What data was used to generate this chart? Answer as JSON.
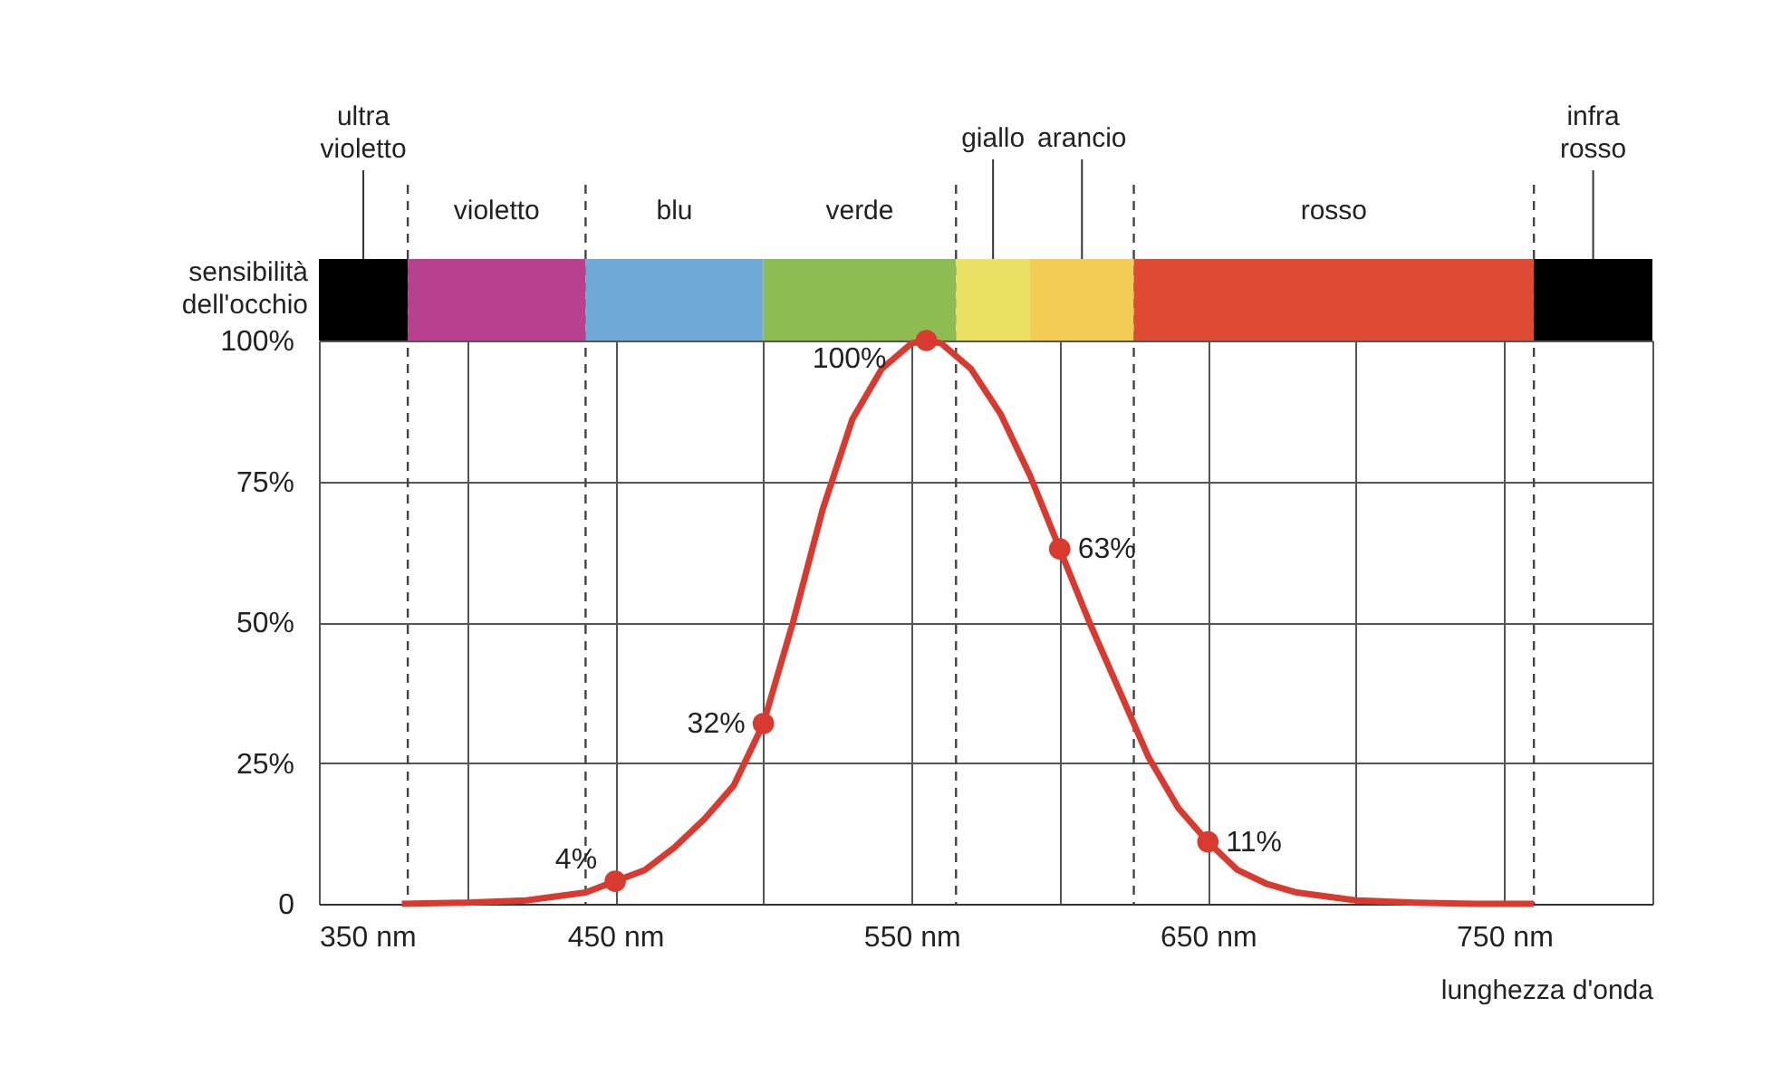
{
  "chart_data": {
    "type": "line",
    "xlabel": "lunghezza d'onda",
    "ylabel": "sensibilità dell'occhio",
    "xlim": [
      350,
      800
    ],
    "ylim": [
      0,
      100
    ],
    "xticks": [
      {
        "value": 350,
        "label": "350 nm"
      },
      {
        "value": 400,
        "label": null
      },
      {
        "value": 450,
        "label": "450 nm"
      },
      {
        "value": 500,
        "label": null
      },
      {
        "value": 550,
        "label": "550 nm"
      },
      {
        "value": 600,
        "label": null
      },
      {
        "value": 650,
        "label": "650 nm"
      },
      {
        "value": 700,
        "label": null
      },
      {
        "value": 750,
        "label": "750 nm"
      },
      {
        "value": 800,
        "label": null
      }
    ],
    "yticks": [
      0,
      {
        "value": 25,
        "label": "25%"
      },
      {
        "value": 50,
        "label": "50%"
      },
      {
        "value": 75,
        "label": "75%"
      },
      {
        "value": 100,
        "label": "100%"
      }
    ],
    "grid": true,
    "series": [
      {
        "color": "#d93a2f",
        "x": [
          378,
          400,
          420,
          440,
          450,
          460,
          470,
          480,
          490,
          500,
          510,
          520,
          530,
          540,
          550,
          555,
          560,
          570,
          580,
          590,
          600,
          610,
          620,
          630,
          640,
          650,
          660,
          670,
          680,
          700,
          720,
          740,
          760
        ],
        "values": [
          0,
          0.2,
          0.6,
          2,
          4,
          6,
          10,
          15,
          21,
          32,
          50,
          70,
          86,
          95,
          99.5,
          100,
          99.5,
          95,
          87,
          76,
          63,
          50,
          38,
          26,
          17,
          11,
          6,
          3.5,
          2,
          0.6,
          0.2,
          0,
          0
        ]
      },
      {
        "type": "scatter",
        "color": "#d93a2f",
        "marker": "circle",
        "x": [
          450,
          500,
          555,
          600,
          650
        ],
        "values": [
          4,
          32,
          100,
          63,
          11
        ],
        "value_labels": [
          "4%",
          "32%",
          "100%",
          "63%",
          "11%"
        ]
      }
    ],
    "ref_lines": [
      {
        "axis": "x",
        "value": 380,
        "line_style": "dashed"
      },
      {
        "axis": "x",
        "value": 440,
        "line_style": "dashed"
      },
      {
        "axis": "x",
        "value": 565,
        "line_style": "dashed"
      },
      {
        "axis": "x",
        "value": 625,
        "line_style": "dashed"
      },
      {
        "axis": "x",
        "value": 760,
        "line_style": "dashed"
      }
    ],
    "bands": [
      {
        "axis": "x",
        "from": 350,
        "to": 380,
        "label": "ultra violetto",
        "color": "#000000"
      },
      {
        "axis": "x",
        "from": 380,
        "to": 440,
        "label": "violetto",
        "color": "#b8408f"
      },
      {
        "axis": "x",
        "from": 440,
        "to": 500,
        "label": "blu",
        "color": "#6fa9d8"
      },
      {
        "axis": "x",
        "from": 500,
        "to": 565,
        "label": "verde",
        "color": "#8dbd52"
      },
      {
        "axis": "x",
        "from": 565,
        "to": 590,
        "label": "giallo",
        "color": "#ebe165"
      },
      {
        "axis": "x",
        "from": 590,
        "to": 625,
        "label": "arancio",
        "color": "#f3cc55"
      },
      {
        "axis": "x",
        "from": 625,
        "to": 760,
        "label": "rosso",
        "color": "#df4a35"
      },
      {
        "axis": "x",
        "from": 760,
        "to": 800,
        "label": "infra rosso",
        "color": "#000000"
      }
    ]
  }
}
